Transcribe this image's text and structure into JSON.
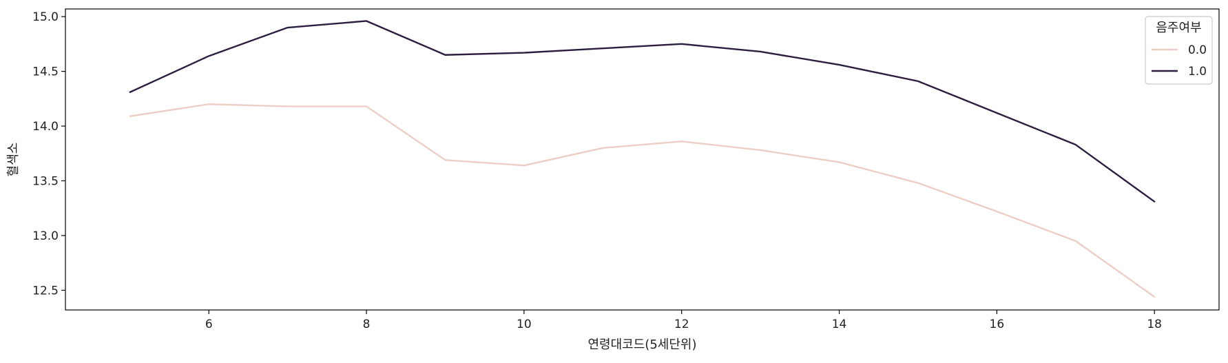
{
  "chart_data": {
    "type": "line",
    "title": "",
    "xlabel": "연령대코드(5세단위)",
    "ylabel": "혈색소",
    "xlim": [
      4.18,
      18.82
    ],
    "ylim": [
      12.32,
      15.07
    ],
    "xticks": [
      6,
      8,
      10,
      12,
      14,
      16,
      18
    ],
    "yticks": [
      12.5,
      13.0,
      13.5,
      14.0,
      14.5,
      15.0
    ],
    "ytick_labels": [
      "12.5",
      "13.0",
      "13.5",
      "14.0",
      "14.5",
      "15.0"
    ],
    "grid": false,
    "legend": {
      "title": "음주여부",
      "placement": "top-right"
    },
    "x": [
      5,
      6,
      7,
      8,
      9,
      10,
      11,
      12,
      13,
      14,
      15,
      16,
      17,
      18
    ],
    "series": [
      {
        "name": "0.0",
        "color": "#eccec7",
        "values": [
          14.09,
          14.2,
          14.18,
          14.18,
          13.69,
          13.64,
          13.8,
          13.86,
          13.78,
          13.67,
          13.48,
          13.22,
          12.95,
          12.44
        ]
      },
      {
        "name": "1.0",
        "color": "#2c1e3e",
        "values": [
          14.31,
          14.64,
          14.9,
          14.96,
          14.65,
          14.67,
          14.71,
          14.75,
          14.68,
          14.56,
          14.41,
          14.12,
          13.83,
          13.31
        ]
      }
    ]
  }
}
